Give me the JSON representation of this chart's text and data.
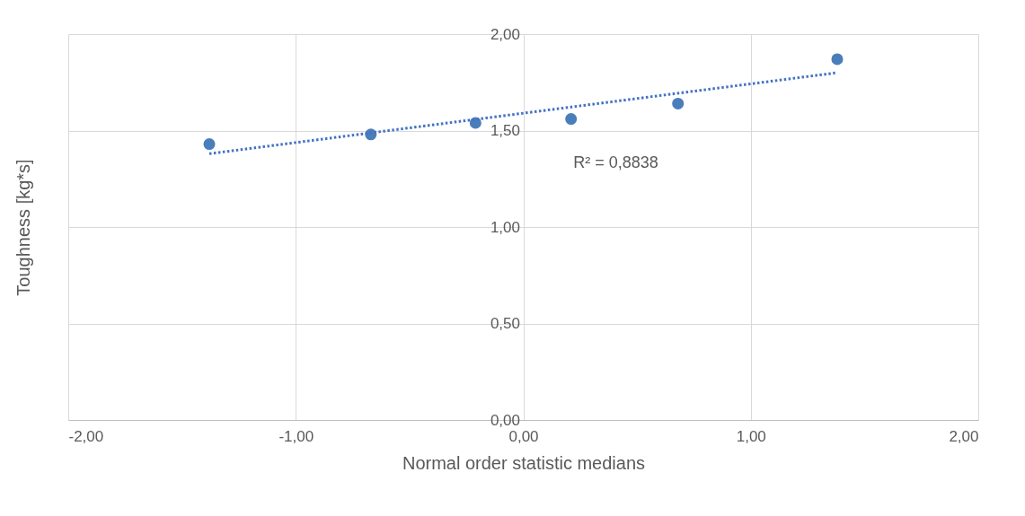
{
  "chart_data": {
    "type": "scatter",
    "xlabel": "Normal order statistic medians",
    "ylabel": "Toughness [kg*s]",
    "xlim": [
      -2,
      2
    ],
    "xticks": [
      {
        "value": -2,
        "label": "-2,00"
      },
      {
        "value": -1,
        "label": "-1,00"
      },
      {
        "value": 0,
        "label": "0,00"
      },
      {
        "value": 1,
        "label": "1,00"
      },
      {
        "value": 2,
        "label": "2,00"
      }
    ],
    "ylim": [
      0,
      2
    ],
    "yticks": [
      {
        "value": 0,
        "label": "0,00"
      },
      {
        "value": 0.5,
        "label": "0,50"
      },
      {
        "value": 1,
        "label": "1,00"
      },
      {
        "value": 1.5,
        "label": "1,50"
      },
      {
        "value": 2,
        "label": "2,00"
      }
    ],
    "grid": true,
    "series": [
      {
        "color": "#4a7ebb",
        "marker": "circle",
        "x": [
          -1.38,
          -0.67,
          -0.21,
          0.21,
          0.68,
          1.38
        ],
        "values": [
          1.43,
          1.48,
          1.54,
          1.56,
          1.64,
          1.87
        ]
      },
      {
        "type": "line",
        "color": "#4472c4",
        "marker": "none",
        "line_style": "dotted",
        "x": [
          -1.38,
          1.38
        ],
        "values": [
          1.38,
          1.8
        ]
      }
    ],
    "annotations": [
      "R² = 0,8838"
    ]
  }
}
